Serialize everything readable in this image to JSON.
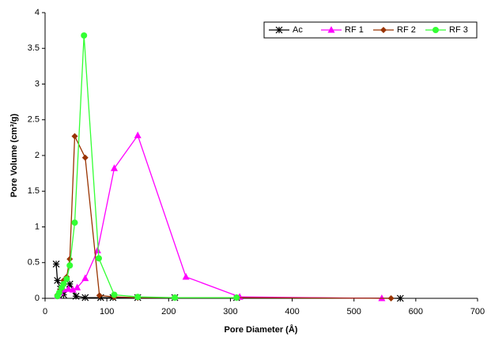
{
  "chart_data": {
    "type": "line",
    "xlabel": "Pore Diameter (Å)",
    "ylabel": "Pore Volume (cm³/g)",
    "xlim": [
      0,
      700
    ],
    "xticks": [
      0,
      100,
      200,
      300,
      400,
      500,
      600,
      700
    ],
    "ylim": [
      0,
      4
    ],
    "yticks": [
      0,
      0.5,
      1,
      1.5,
      2,
      2.5,
      3,
      3.5,
      4
    ],
    "legend": "upper right",
    "series": [
      {
        "name": "Ac",
        "color": "#000000",
        "marker": "asterisk",
        "x": [
          18,
          20,
          25,
          30,
          40,
          50,
          65,
          90,
          110,
          150,
          210,
          310,
          575
        ],
        "values": [
          0.48,
          0.25,
          0.13,
          0.05,
          0.2,
          0.03,
          0.01,
          0.01,
          0.01,
          0.01,
          0.01,
          0.01,
          0
        ]
      },
      {
        "name": "RF 1",
        "color": "#ff00ff",
        "marker": "triangle",
        "x": [
          20,
          25,
          30,
          38,
          45,
          52,
          65,
          85,
          112,
          150,
          228,
          315,
          545
        ],
        "values": [
          0.03,
          0.08,
          0.12,
          0.13,
          0.12,
          0.15,
          0.28,
          0.67,
          1.82,
          2.28,
          0.3,
          0.02,
          0
        ]
      },
      {
        "name": "RF 2",
        "color": "#993300",
        "marker": "diamond",
        "x": [
          20,
          25,
          30,
          35,
          40,
          48,
          65,
          88,
          112,
          150,
          210,
          310,
          560
        ],
        "values": [
          0.05,
          0.12,
          0.25,
          0.3,
          0.55,
          2.27,
          1.97,
          0.04,
          0.02,
          0.01,
          0.01,
          0.01,
          0
        ]
      },
      {
        "name": "RF 3",
        "color": "#33ff33",
        "marker": "circle",
        "x": [
          20,
          23,
          27,
          30,
          35,
          40,
          48,
          63,
          87,
          112,
          150,
          210,
          310
        ],
        "values": [
          0.03,
          0.08,
          0.15,
          0.2,
          0.27,
          0.46,
          1.06,
          3.68,
          0.56,
          0.05,
          0.02,
          0.01,
          0.01
        ]
      }
    ]
  }
}
